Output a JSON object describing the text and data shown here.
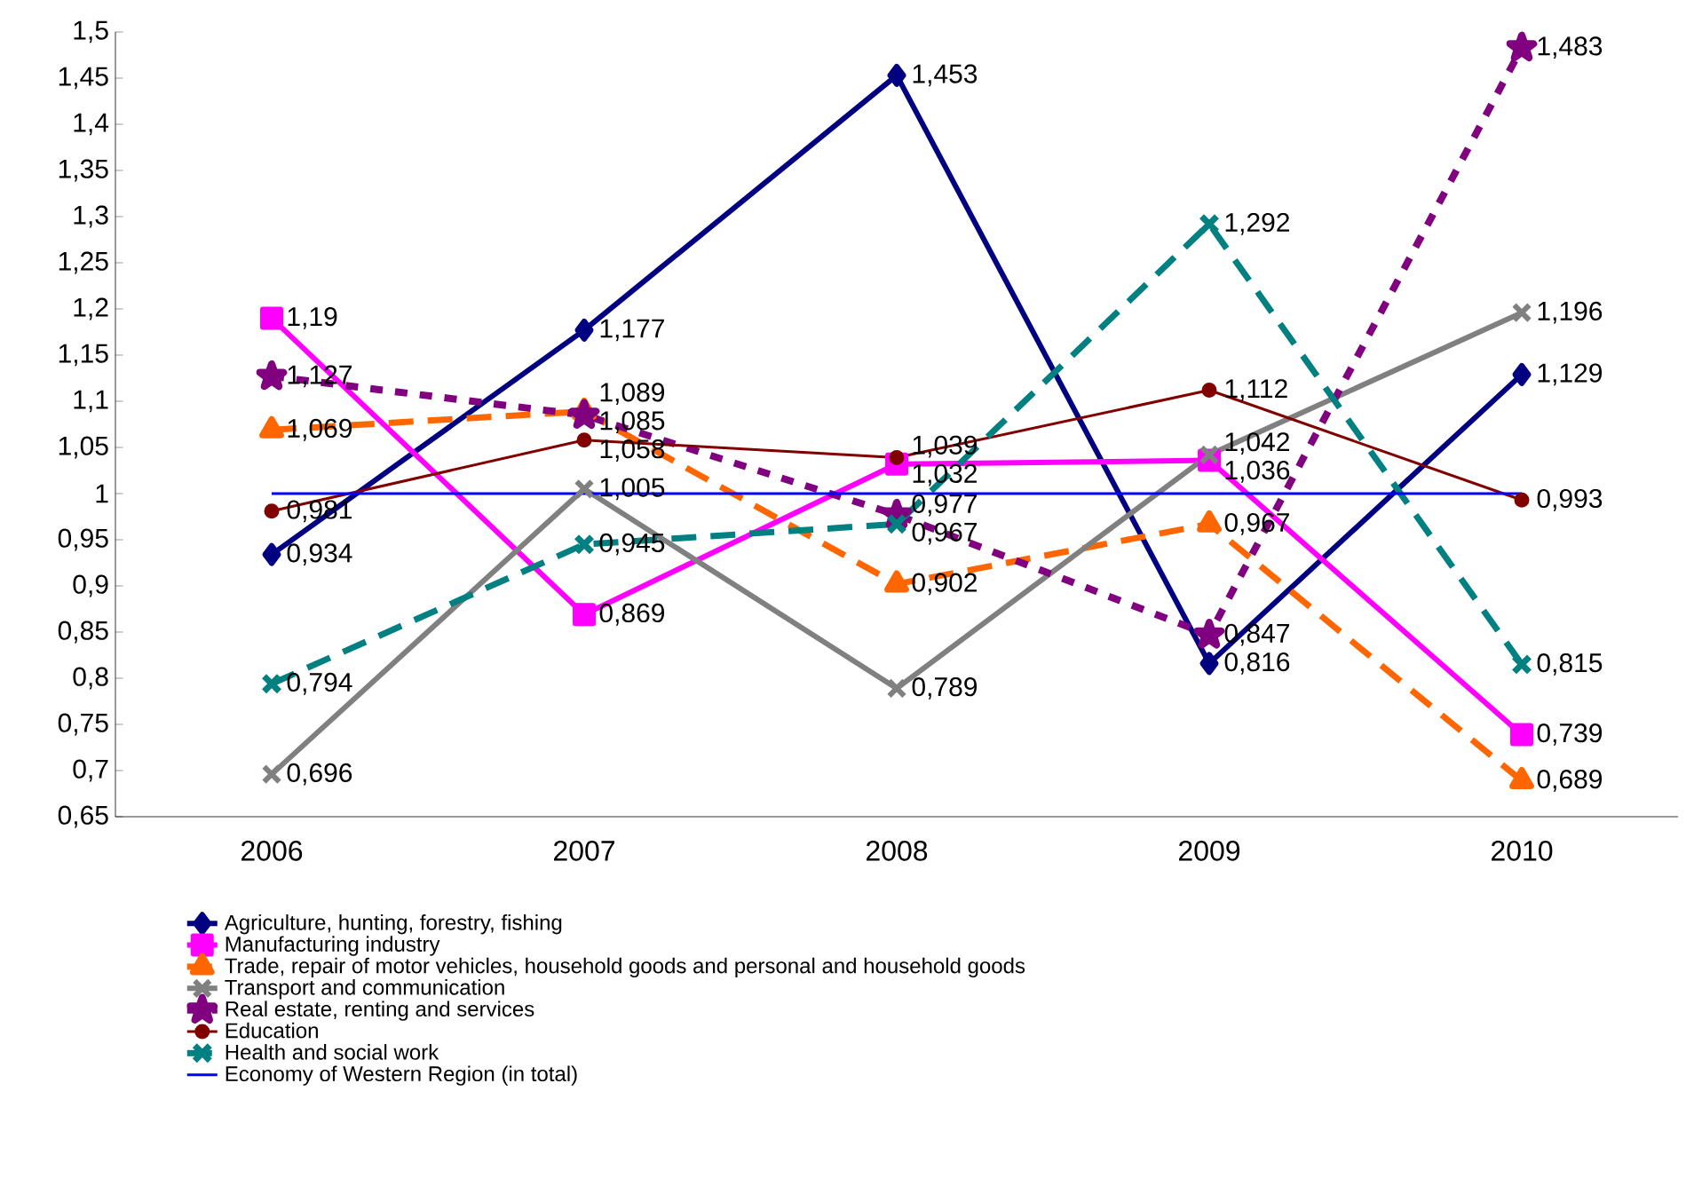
{
  "chart_data": {
    "type": "line",
    "categories": [
      "2006",
      "2007",
      "2008",
      "2009",
      "2010"
    ],
    "ylim": [
      0.65,
      1.5
    ],
    "yticks": [
      {
        "value": 0.65,
        "label": "0,65"
      },
      {
        "value": 0.7,
        "label": "0,7"
      },
      {
        "value": 0.75,
        "label": "0,75"
      },
      {
        "value": 0.8,
        "label": "0,8"
      },
      {
        "value": 0.85,
        "label": "0,85"
      },
      {
        "value": 0.9,
        "label": "0,9"
      },
      {
        "value": 0.95,
        "label": "0,95"
      },
      1,
      {
        "value": 1.05,
        "label": "1,05"
      },
      {
        "value": 1.1,
        "label": "1,1"
      },
      {
        "value": 1.15,
        "label": "1,15"
      },
      {
        "value": 1.2,
        "label": "1,2"
      },
      {
        "value": 1.25,
        "label": "1,25"
      },
      {
        "value": 1.3,
        "label": "1,3"
      },
      {
        "value": 1.35,
        "label": "1,35"
      },
      {
        "value": 1.4,
        "label": "1,4"
      },
      {
        "value": 1.45,
        "label": "1,45"
      },
      {
        "value": 1.5,
        "label": "1,5"
      }
    ],
    "grid": false,
    "legend": "bottom",
    "series": [
      {
        "name": "Agriculture, hunting, forestry, fishing",
        "color": "#000080",
        "marker": "diamond",
        "line_style": "solid",
        "values": [
          0.934,
          1.177,
          1.453,
          0.816,
          1.129
        ],
        "value_labels": [
          "0,934",
          "1,177",
          "1,453",
          "0,816",
          "1,129"
        ]
      },
      {
        "name": "Manufacturing industry",
        "color": "#ff00ff",
        "marker": "square",
        "line_style": "solid",
        "values": [
          1.19,
          0.869,
          1.032,
          1.036,
          0.739
        ],
        "value_labels": [
          "1,19",
          "0,869",
          "1,032",
          "1,036",
          "0,739"
        ]
      },
      {
        "name": "Trade, repair of motor vehicles, household goods and personal and household goods",
        "color": "#ff6600",
        "marker": "triangle",
        "line_style": "dashed",
        "values": [
          1.069,
          1.089,
          0.902,
          0.967,
          0.689
        ],
        "value_labels": [
          "1,069",
          "1,089",
          "0,902",
          "0,967",
          "0,689"
        ]
      },
      {
        "name": "Transport and communication",
        "color": "#808080",
        "marker": "cross",
        "line_style": "solid",
        "values": [
          0.696,
          1.005,
          0.789,
          1.042,
          1.196
        ],
        "value_labels": [
          "0,696",
          "1,005",
          "0,789",
          "1,042",
          "1,196"
        ]
      },
      {
        "name": "Real estate, renting and services",
        "color": "#800080",
        "marker": "star",
        "line_style": "dotted",
        "values": [
          1.127,
          1.085,
          0.977,
          0.847,
          1.483
        ],
        "value_labels": [
          "1,127",
          "1,085",
          "0,977",
          "0,847",
          "1,483"
        ]
      },
      {
        "name": "Education",
        "color": "#800000",
        "marker": "circle",
        "line_style": "solid",
        "values": [
          0.981,
          1.058,
          1.039,
          1.112,
          0.993
        ],
        "value_labels": [
          "0,981",
          "1,058",
          "1,039",
          "1,112",
          "0,993"
        ]
      },
      {
        "name": "Health and social work",
        "color": "#008080",
        "marker": "cross",
        "line_style": "dashed",
        "values": [
          0.794,
          0.945,
          0.967,
          1.292,
          0.815
        ],
        "value_labels": [
          "0,794",
          "0,945",
          "0,967",
          "1,292",
          "0,815"
        ]
      },
      {
        "name": "Economy of Western Region (in total)",
        "color": "#0000ff",
        "marker": "none",
        "line_style": "solid",
        "values": [
          1,
          1,
          1,
          1,
          1
        ]
      }
    ]
  }
}
